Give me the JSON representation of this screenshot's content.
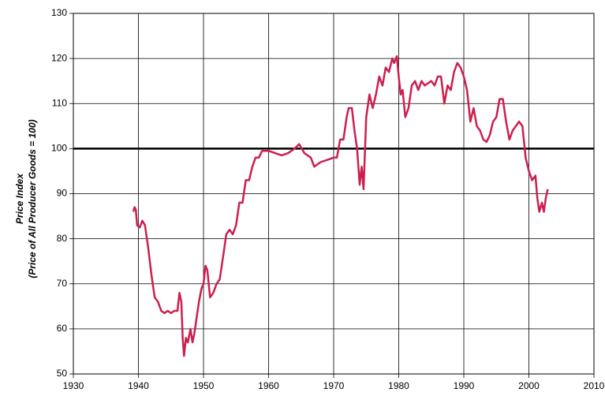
{
  "chart_data": {
    "type": "line",
    "y_label_lines": [
      "Price Index",
      "(Price of  All Producer Goods = 100)"
    ],
    "x": [
      1939.2,
      1939.4,
      1939.6,
      1939.8,
      1940.2,
      1940.6,
      1941,
      1941.5,
      1942,
      1942.5,
      1943,
      1943.5,
      1944,
      1944.5,
      1945,
      1945.5,
      1946,
      1946.3,
      1946.6,
      1946.8,
      1947,
      1947.3,
      1947.6,
      1948,
      1948.3,
      1948.6,
      1948.9,
      1949.3,
      1949.7,
      1950,
      1950.3,
      1950.6,
      1951,
      1951.5,
      1952,
      1952.5,
      1953,
      1953.5,
      1954,
      1954.5,
      1955,
      1955.5,
      1956,
      1956.5,
      1957,
      1957.5,
      1958,
      1958.5,
      1959,
      1960,
      1961,
      1962,
      1963,
      1964,
      1964.7,
      1965.5,
      1966.5,
      1967,
      1968,
      1969,
      1970,
      1970.5,
      1971,
      1971.5,
      1972,
      1972.3,
      1972.8,
      1973.2,
      1973.6,
      1974,
      1974.3,
      1974.6,
      1975,
      1975.5,
      1976,
      1976.5,
      1977,
      1977.5,
      1978,
      1978.5,
      1979,
      1979.3,
      1979.7,
      1980,
      1980.3,
      1980.6,
      1981,
      1981.5,
      1982,
      1982.5,
      1983,
      1983.5,
      1984,
      1985,
      1985.5,
      1986,
      1986.5,
      1987,
      1987.5,
      1988,
      1988.5,
      1989,
      1989.5,
      1990,
      1990.5,
      1991,
      1991.5,
      1992,
      1992.5,
      1993,
      1993.5,
      1994,
      1994.5,
      1995,
      1995.5,
      1996,
      1996.5,
      1997,
      1997.5,
      1998,
      1998.5,
      1999,
      1999.5,
      2000,
      2000.5,
      2001,
      2001.3,
      2001.6,
      2002,
      2002.3,
      2002.6,
      2002.9
    ],
    "series": [
      {
        "name": "Price Index",
        "color": "#cc1f4e",
        "values": [
          86,
          87,
          86.5,
          83,
          82.5,
          84,
          83,
          78,
          72,
          67,
          66,
          64,
          63.5,
          64,
          63.5,
          64,
          64,
          68,
          66,
          58,
          54,
          58,
          57,
          60,
          57,
          59,
          62,
          66,
          69,
          70,
          74,
          73,
          67,
          68,
          70,
          71,
          76,
          81,
          82,
          81,
          83,
          88,
          88,
          93,
          93,
          96,
          98,
          98,
          99.5,
          99.5,
          99,
          98.5,
          99,
          100,
          101,
          99,
          98,
          96,
          97,
          97.5,
          98,
          98,
          102,
          102,
          107,
          109,
          109,
          104,
          100,
          92,
          96,
          91,
          107,
          112,
          109,
          112,
          116,
          114,
          118,
          117,
          120,
          119,
          120.5,
          116,
          112,
          113,
          107,
          109,
          114,
          115,
          113,
          115,
          114,
          115,
          114,
          116,
          116,
          110,
          114,
          113,
          117,
          119,
          118,
          116,
          113,
          106,
          109,
          105,
          104,
          102,
          101.5,
          103,
          106,
          107,
          111,
          111,
          106,
          102,
          104,
          105,
          106,
          105,
          98,
          95,
          93,
          94,
          89,
          86,
          88,
          86,
          89,
          91
        ]
      }
    ],
    "reference_line": 100,
    "xlim": [
      1930,
      2010
    ],
    "xticks": [
      1930,
      1940,
      1950,
      1960,
      1970,
      1980,
      1990,
      2000,
      2010
    ],
    "ylim": [
      50,
      130
    ],
    "yticks": [
      50,
      60,
      70,
      80,
      90,
      100,
      110,
      120,
      130
    ],
    "grid": true
  }
}
